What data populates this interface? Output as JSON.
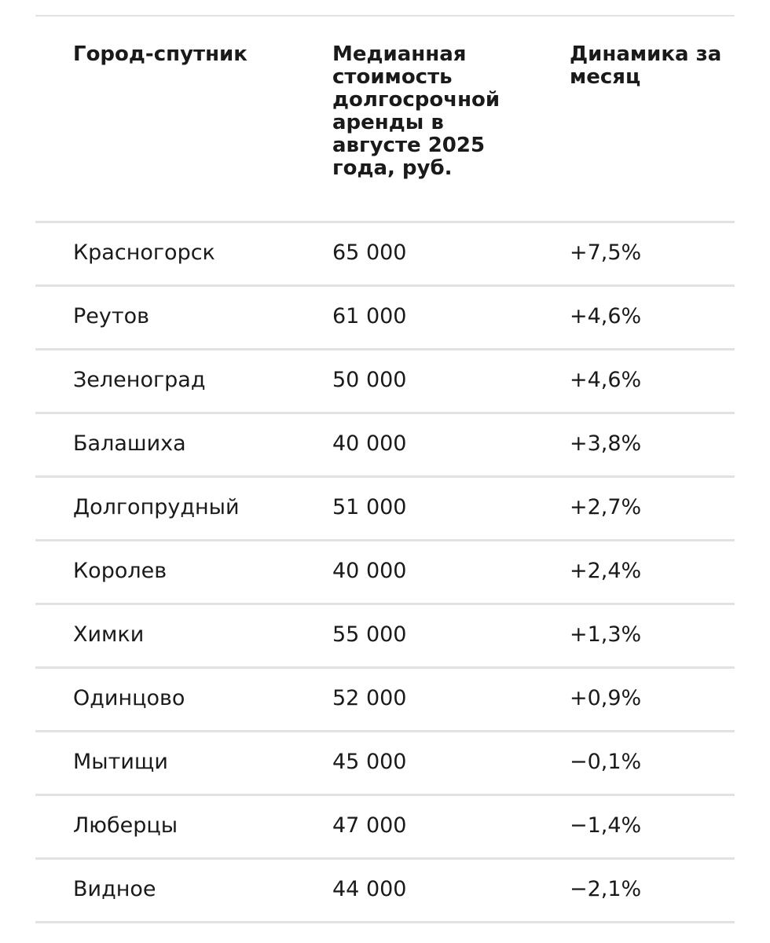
{
  "table": {
    "header": [
      "Город-спутник",
      "Медианная стоимость долгосрочной аренды в августе 2025 года, руб.",
      "Динамика за месяц"
    ],
    "rows": [
      [
        "Красногорск",
        "65 000",
        "+7,5%"
      ],
      [
        "Реутов",
        "61 000",
        "+4,6%"
      ],
      [
        "Зеленоград",
        "50 000",
        "+4,6%"
      ],
      [
        "Балашиха",
        "40 000",
        "+3,8%"
      ],
      [
        "Долгопрудный",
        "51 000",
        "+2,7%"
      ],
      [
        "Королев",
        "40 000",
        "+2,4%"
      ],
      [
        "Химки",
        "55 000",
        "+1,3%"
      ],
      [
        "Одинцово",
        "52 000",
        "+0,9%"
      ],
      [
        "Мытищи",
        "45 000",
        "−0,1%"
      ],
      [
        "Люберцы",
        "47 000",
        "−1,4%"
      ],
      [
        "Видное",
        "44 000",
        "−2,1%"
      ]
    ]
  }
}
